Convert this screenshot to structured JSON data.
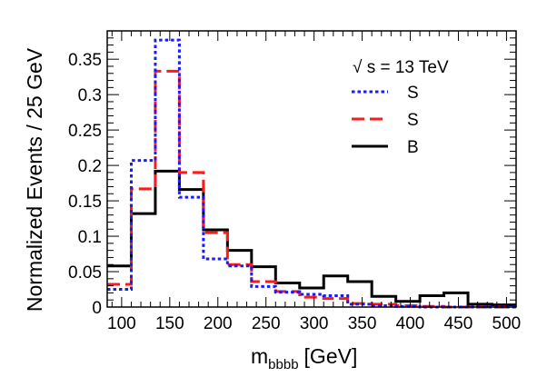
{
  "chart_data": {
    "type": "histogram",
    "title": "",
    "xlabel_main": "m",
    "xlabel_sub": "bbbb",
    "xlabel_unit": "[GeV]",
    "ylabel": "Normalized Events / 25 GeV",
    "xlim": [
      85,
      510
    ],
    "ylim": [
      0,
      0.39
    ],
    "x_ticks": [
      100,
      150,
      200,
      250,
      300,
      350,
      400,
      450,
      500
    ],
    "x_tick_labels": [
      "100",
      "150",
      "200",
      "250",
      "300",
      "350",
      "400",
      "450",
      "500"
    ],
    "y_ticks": [
      0,
      0.05,
      0.1,
      0.15,
      0.2,
      0.25,
      0.3,
      0.35
    ],
    "y_tick_labels": [
      "0",
      "0.05",
      "0.1",
      "0.15",
      "0.2",
      "0.25",
      "0.3",
      "0.35"
    ],
    "bin_edges": [
      85,
      110,
      135,
      160,
      185,
      210,
      235,
      260,
      285,
      310,
      335,
      360,
      385,
      410,
      435,
      460,
      485,
      510
    ],
    "legend_header": "√ s = 13 TeV",
    "series": [
      {
        "name": "S",
        "color": "#1a1aff",
        "style": "dotted",
        "values": [
          0.025,
          0.207,
          0.377,
          0.155,
          0.068,
          0.058,
          0.029,
          0.021,
          0.018,
          0.016,
          0.004,
          0.002,
          0.001,
          0.0,
          0.0,
          0.0,
          0.0
        ]
      },
      {
        "name": "S",
        "color": "#ff1a1a",
        "style": "dashed",
        "values": [
          0.032,
          0.167,
          0.333,
          0.19,
          0.105,
          0.06,
          0.036,
          0.022,
          0.014,
          0.012,
          0.005,
          0.004,
          0.002,
          0.001,
          0.0,
          0.0,
          0.0
        ]
      },
      {
        "name": "B",
        "color": "#000000",
        "style": "solid",
        "values": [
          0.058,
          0.132,
          0.192,
          0.166,
          0.109,
          0.08,
          0.057,
          0.034,
          0.027,
          0.044,
          0.036,
          0.015,
          0.008,
          0.016,
          0.02,
          0.004,
          0.003
        ]
      }
    ]
  }
}
